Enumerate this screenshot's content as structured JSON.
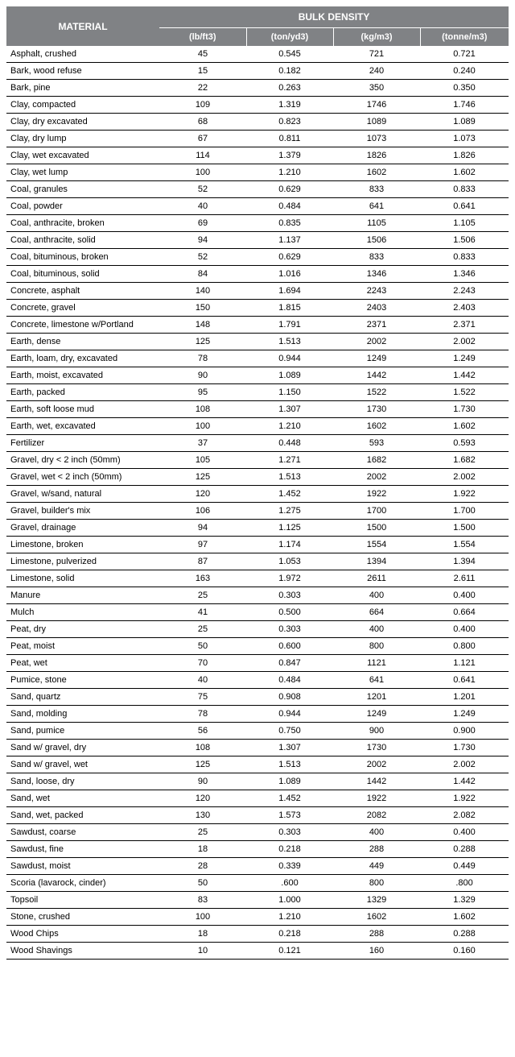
{
  "table": {
    "header_material": "MATERIAL",
    "header_bulk": "BULK DENSITY",
    "columns": [
      "(lb/ft3)",
      "(ton/yd3)",
      "(kg/m3)",
      "(tonne/m3)"
    ],
    "rows": [
      [
        "Asphalt, crushed",
        "45",
        "0.545",
        "721",
        "0.721"
      ],
      [
        "Bark, wood refuse",
        "15",
        "0.182",
        "240",
        "0.240"
      ],
      [
        "Bark, pine",
        "22",
        "0.263",
        "350",
        "0.350"
      ],
      [
        "Clay, compacted",
        "109",
        "1.319",
        "1746",
        "1.746"
      ],
      [
        "Clay, dry excavated",
        "68",
        "0.823",
        "1089",
        "1.089"
      ],
      [
        "Clay, dry lump",
        "67",
        "0.811",
        "1073",
        "1.073"
      ],
      [
        "Clay, wet excavated",
        "114",
        "1.379",
        "1826",
        "1.826"
      ],
      [
        "Clay, wet lump",
        "100",
        "1.210",
        "1602",
        "1.602"
      ],
      [
        "Coal, granules",
        "52",
        "0.629",
        "833",
        "0.833"
      ],
      [
        "Coal, powder",
        "40",
        "0.484",
        "641",
        "0.641"
      ],
      [
        "Coal, anthracite, broken",
        "69",
        "0.835",
        "1105",
        "1.105"
      ],
      [
        "Coal, anthracite, solid",
        "94",
        "1.137",
        "1506",
        "1.506"
      ],
      [
        "Coal, bituminous, broken",
        "52",
        "0.629",
        "833",
        "0.833"
      ],
      [
        "Coal, bituminous, solid",
        "84",
        "1.016",
        "1346",
        "1.346"
      ],
      [
        "Concrete, asphalt",
        "140",
        "1.694",
        "2243",
        "2.243"
      ],
      [
        "Concrete, gravel",
        "150",
        "1.815",
        "2403",
        "2.403"
      ],
      [
        "Concrete, limestone w/Portland",
        "148",
        "1.791",
        "2371",
        "2.371"
      ],
      [
        "Earth, dense",
        "125",
        "1.513",
        "2002",
        "2.002"
      ],
      [
        "Earth, loam, dry, excavated",
        "78",
        "0.944",
        "1249",
        "1.249"
      ],
      [
        "Earth, moist, excavated",
        "90",
        "1.089",
        "1442",
        "1.442"
      ],
      [
        "Earth, packed",
        "95",
        "1.150",
        "1522",
        "1.522"
      ],
      [
        "Earth, soft loose mud",
        "108",
        "1.307",
        "1730",
        "1.730"
      ],
      [
        "Earth, wet, excavated",
        "100",
        "1.210",
        "1602",
        "1.602"
      ],
      [
        "Fertilizer",
        "37",
        "0.448",
        "593",
        "0.593"
      ],
      [
        "Gravel, dry < 2 inch (50mm)",
        "105",
        "1.271",
        "1682",
        "1.682"
      ],
      [
        "Gravel, wet < 2 inch (50mm)",
        "125",
        "1.513",
        "2002",
        "2.002"
      ],
      [
        "Gravel, w/sand, natural",
        "120",
        "1.452",
        "1922",
        "1.922"
      ],
      [
        "Gravel, builder's mix",
        "106",
        "1.275",
        "1700",
        "1.700"
      ],
      [
        "Gravel, drainage",
        "94",
        "1.125",
        "1500",
        "1.500"
      ],
      [
        "Limestone, broken",
        "97",
        "1.174",
        "1554",
        "1.554"
      ],
      [
        "Limestone, pulverized",
        "87",
        "1.053",
        "1394",
        "1.394"
      ],
      [
        "Limestone, solid",
        "163",
        "1.972",
        "2611",
        "2.611"
      ],
      [
        "Manure",
        "25",
        "0.303",
        "400",
        "0.400"
      ],
      [
        "Mulch",
        "41",
        "0.500",
        "664",
        "0.664"
      ],
      [
        "Peat, dry",
        "25",
        "0.303",
        "400",
        "0.400"
      ],
      [
        "Peat, moist",
        "50",
        "0.600",
        "800",
        "0.800"
      ],
      [
        "Peat, wet",
        "70",
        "0.847",
        "1121",
        "1.121"
      ],
      [
        "Pumice, stone",
        "40",
        "0.484",
        "641",
        "0.641"
      ],
      [
        "Sand, quartz",
        "75",
        "0.908",
        "1201",
        "1.201"
      ],
      [
        "Sand, molding",
        "78",
        "0.944",
        "1249",
        "1.249"
      ],
      [
        "Sand, pumice",
        "56",
        "0.750",
        "900",
        "0.900"
      ],
      [
        "Sand w/ gravel, dry",
        "108",
        "1.307",
        "1730",
        "1.730"
      ],
      [
        "Sand w/ gravel, wet",
        "125",
        "1.513",
        "2002",
        "2.002"
      ],
      [
        "Sand, loose, dry",
        "90",
        "1.089",
        "1442",
        "1.442"
      ],
      [
        "Sand, wet",
        "120",
        "1.452",
        "1922",
        "1.922"
      ],
      [
        "Sand, wet, packed",
        "130",
        "1.573",
        "2082",
        "2.082"
      ],
      [
        "Sawdust, coarse",
        "25",
        "0.303",
        "400",
        "0.400"
      ],
      [
        "Sawdust, fine",
        "18",
        "0.218",
        "288",
        "0.288"
      ],
      [
        "Sawdust, moist",
        "28",
        "0.339",
        "449",
        "0.449"
      ],
      [
        "Scoria (lavarock, cinder)",
        "50",
        ".600",
        "800",
        ".800"
      ],
      [
        "Topsoil",
        "83",
        "1.000",
        "1329",
        "1.329"
      ],
      [
        "Stone, crushed",
        "100",
        "1.210",
        "1602",
        "1.602"
      ],
      [
        "Wood Chips",
        "18",
        "0.218",
        "288",
        "0.288"
      ],
      [
        "Wood Shavings",
        "10",
        "0.121",
        "160",
        "0.160"
      ]
    ],
    "colors": {
      "header_bg": "#808285",
      "header_fg": "#ffffff",
      "row_border": "#000000"
    }
  }
}
